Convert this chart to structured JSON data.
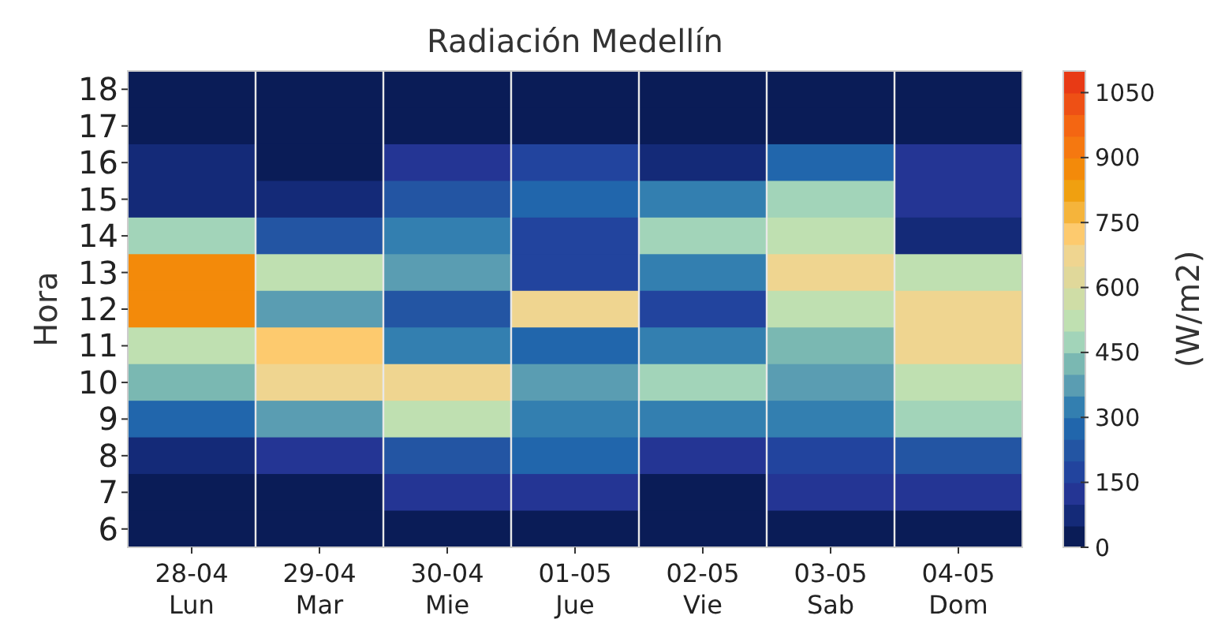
{
  "chart_data": {
    "type": "heatmap",
    "title": "Radiación Medellín",
    "ylabel": "Hora",
    "clabel": "(W/m2)",
    "categories": [
      "28-04\nLun",
      "29-04\nMar",
      "30-04\nMie",
      "01-05\nJue",
      "02-05\nVie",
      "03-05\nSab",
      "04-05\nDom"
    ],
    "y_categories": [
      "18",
      "17",
      "16",
      "15",
      "14",
      "13",
      "12",
      "11",
      "10",
      "9",
      "8",
      "7",
      "6"
    ],
    "cells": [
      [
        25,
        25,
        25,
        25,
        25,
        25,
        25
      ],
      [
        25,
        25,
        25,
        25,
        25,
        25,
        25
      ],
      [
        75,
        25,
        125,
        175,
        75,
        275,
        125
      ],
      [
        75,
        75,
        225,
        275,
        325,
        475,
        125
      ],
      [
        475,
        225,
        325,
        175,
        475,
        525,
        75
      ],
      [
        875,
        525,
        375,
        175,
        325,
        675,
        525
      ],
      [
        875,
        375,
        225,
        675,
        175,
        525,
        675
      ],
      [
        525,
        725,
        325,
        275,
        325,
        425,
        675
      ],
      [
        425,
        675,
        675,
        375,
        475,
        375,
        525
      ],
      [
        275,
        375,
        525,
        325,
        325,
        325,
        475
      ],
      [
        75,
        125,
        225,
        275,
        125,
        175,
        225
      ],
      [
        25,
        25,
        125,
        125,
        25,
        125,
        125
      ],
      [
        25,
        25,
        25,
        25,
        25,
        25,
        25
      ]
    ],
    "clim": [
      0,
      1100
    ],
    "cticks": [
      0,
      150,
      300,
      450,
      600,
      750,
      900,
      1050
    ]
  }
}
